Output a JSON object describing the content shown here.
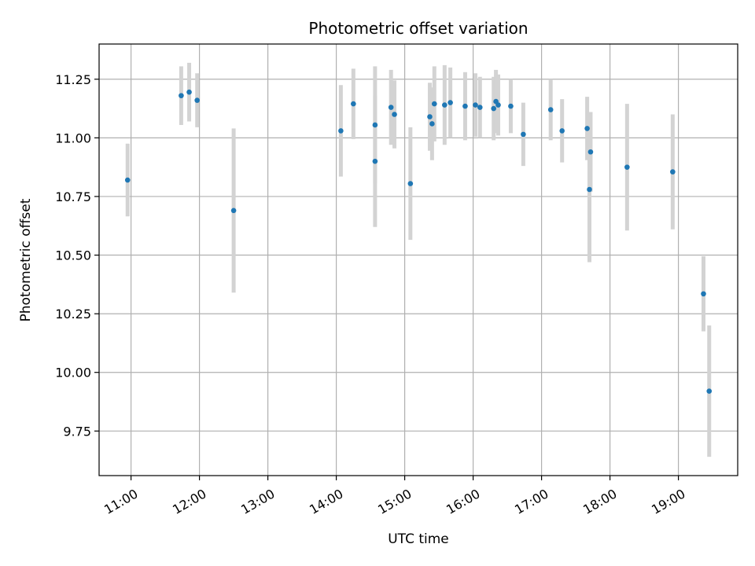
{
  "chart_data": {
    "type": "scatter",
    "title": "Photometric offset variation",
    "xlabel": "UTC time",
    "ylabel": "Photometric offset",
    "x_unit": "hour",
    "xlim": [
      "10:32",
      "19:52"
    ],
    "ylim": [
      9.56,
      11.4
    ],
    "x_ticks": [
      "11:00",
      "12:00",
      "13:00",
      "14:00",
      "15:00",
      "16:00",
      "17:00",
      "18:00",
      "19:00"
    ],
    "y_ticks": [
      "9.75",
      "10.00",
      "10.25",
      "10.50",
      "10.75",
      "11.00",
      "11.25"
    ],
    "grid": true,
    "colors": {
      "point": "#1f77b4",
      "errorbar": "#d3d3d3"
    },
    "points": [
      {
        "x": "10:57",
        "y": 10.82,
        "yerr": 0.155
      },
      {
        "x": "11:44",
        "y": 11.18,
        "yerr": 0.125
      },
      {
        "x": "11:51",
        "y": 11.195,
        "yerr": 0.125
      },
      {
        "x": "11:58",
        "y": 11.16,
        "yerr": 0.115
      },
      {
        "x": "12:30",
        "y": 10.69,
        "yerr": 0.35
      },
      {
        "x": "14:04",
        "y": 11.03,
        "yerr": 0.195
      },
      {
        "x": "14:15",
        "y": 11.145,
        "yerr": 0.15
      },
      {
        "x": "14:34",
        "y": 11.055,
        "yerr": 0.25
      },
      {
        "x": "14:34",
        "y": 10.9,
        "yerr": 0.28
      },
      {
        "x": "14:48",
        "y": 11.13,
        "yerr": 0.16
      },
      {
        "x": "14:51",
        "y": 11.1,
        "yerr": 0.145
      },
      {
        "x": "15:05",
        "y": 10.805,
        "yerr": 0.24
      },
      {
        "x": "15:22",
        "y": 11.09,
        "yerr": 0.145
      },
      {
        "x": "15:24",
        "y": 11.06,
        "yerr": 0.155
      },
      {
        "x": "15:26",
        "y": 11.145,
        "yerr": 0.16
      },
      {
        "x": "15:35",
        "y": 11.14,
        "yerr": 0.17
      },
      {
        "x": "15:40",
        "y": 11.15,
        "yerr": 0.15
      },
      {
        "x": "15:53",
        "y": 11.135,
        "yerr": 0.145
      },
      {
        "x": "16:02",
        "y": 11.14,
        "yerr": 0.135
      },
      {
        "x": "16:06",
        "y": 11.13,
        "yerr": 0.13
      },
      {
        "x": "16:18",
        "y": 11.125,
        "yerr": 0.135
      },
      {
        "x": "16:20",
        "y": 11.155,
        "yerr": 0.135
      },
      {
        "x": "16:22",
        "y": 11.14,
        "yerr": 0.13
      },
      {
        "x": "16:33",
        "y": 11.135,
        "yerr": 0.115
      },
      {
        "x": "16:44",
        "y": 11.015,
        "yerr": 0.135
      },
      {
        "x": "17:08",
        "y": 11.12,
        "yerr": 0.13
      },
      {
        "x": "17:18",
        "y": 11.03,
        "yerr": 0.135
      },
      {
        "x": "17:40",
        "y": 11.04,
        "yerr": 0.135
      },
      {
        "x": "17:43",
        "y": 10.94,
        "yerr": 0.17
      },
      {
        "x": "17:42",
        "y": 10.78,
        "yerr": 0.31
      },
      {
        "x": "18:15",
        "y": 10.875,
        "yerr": 0.27
      },
      {
        "x": "18:55",
        "y": 10.855,
        "yerr": 0.245
      },
      {
        "x": "19:22",
        "y": 10.335,
        "yerr": 0.16
      },
      {
        "x": "19:27",
        "y": 9.92,
        "yerr": 0.28
      }
    ]
  }
}
